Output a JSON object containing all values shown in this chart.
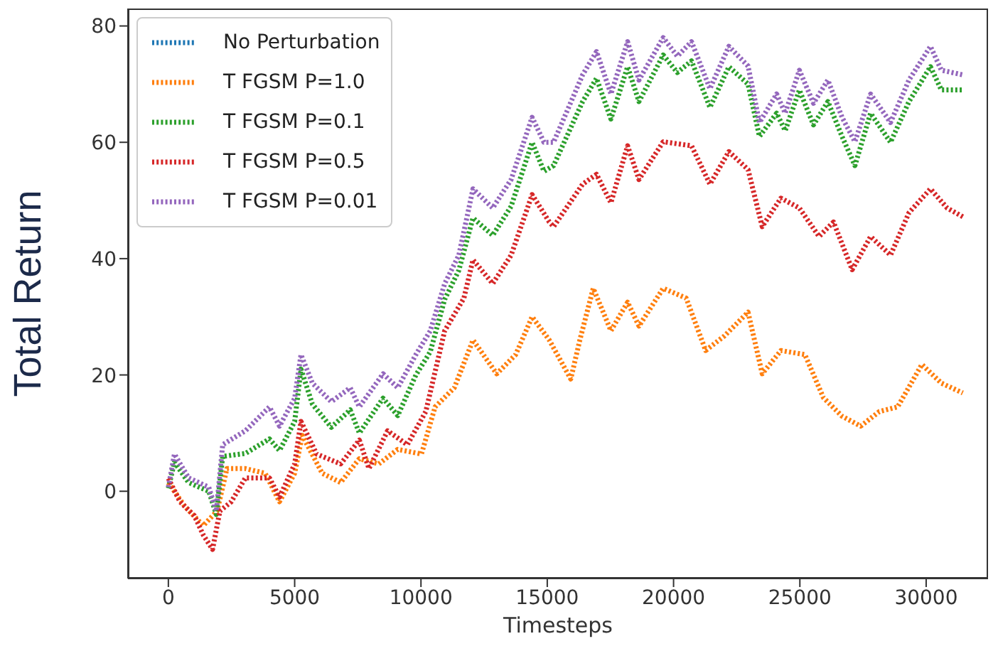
{
  "chart_data": {
    "type": "line",
    "xlabel": "Timesteps",
    "ylabel": "Total Return",
    "xlim": [
      -1600,
      32450
    ],
    "ylim": [
      -15,
      83
    ],
    "xticks": [
      0,
      5000,
      10000,
      15000,
      20000,
      25000,
      30000
    ],
    "yticks": [
      0,
      20,
      40,
      60,
      80
    ],
    "legend": "top left",
    "line_style": "dotted",
    "marker": "none",
    "grid": false,
    "series": [
      {
        "name": "No Perturbation",
        "color": "#1f77b4"
      },
      {
        "name": "T FGSM P=1.0",
        "color": "#ff7f0e",
        "x": [
          0,
          650,
          1380,
          1930,
          2320,
          3050,
          3830,
          4400,
          5000,
          5300,
          6090,
          6820,
          7560,
          8330,
          9080,
          10020,
          10560,
          11320,
          12060,
          13000,
          13750,
          14400,
          15080,
          15930,
          16290,
          16820,
          17520,
          18180,
          18630,
          19590,
          20500,
          21270,
          22010,
          22950,
          23510,
          24250,
          25200,
          25930,
          26670,
          27410,
          28140,
          28870,
          29830,
          30600,
          31450
        ],
        "values": [
          1.5,
          -2.6,
          -5.9,
          -3.4,
          3.9,
          3.9,
          3.1,
          -1.8,
          3.1,
          9.6,
          3.1,
          1.5,
          5.6,
          4.7,
          7.2,
          6.4,
          14.5,
          17.8,
          26,
          20.2,
          23.5,
          30,
          26,
          19.3,
          26,
          34.9,
          27.6,
          32.5,
          28.4,
          34.9,
          33.2,
          24.2,
          26.7,
          30.8,
          20.2,
          24.2,
          23.5,
          16.1,
          12.9,
          11.2,
          13.7,
          14.5,
          21.8,
          18.6,
          16.9
        ]
      },
      {
        "name": "T FGSM P=0.1",
        "color": "#2ca02c",
        "x": [
          0,
          240,
          800,
          1600,
          1900,
          2150,
          3050,
          4000,
          4400,
          5000,
          5250,
          5700,
          6450,
          7200,
          7560,
          8500,
          9080,
          9800,
          10370,
          10940,
          11500,
          12060,
          12840,
          13570,
          14400,
          14870,
          15250,
          16400,
          16950,
          17520,
          18180,
          18630,
          19590,
          20150,
          20710,
          21440,
          22190,
          22950,
          23400,
          24080,
          24420,
          24980,
          25540,
          26110,
          26670,
          27180,
          27800,
          28590,
          29320,
          30170,
          30600,
          31450
        ],
        "values": [
          0.5,
          5,
          1.5,
          0,
          -4,
          6,
          6.5,
          9,
          7,
          12,
          21,
          15,
          11,
          14,
          10,
          16,
          13,
          20,
          24,
          33,
          38,
          47,
          44,
          49,
          60,
          55,
          56,
          67,
          71,
          64,
          73,
          67,
          75,
          72,
          74,
          66,
          73,
          70,
          61,
          65,
          62,
          69,
          63,
          67,
          61,
          56,
          65,
          60,
          67,
          73,
          69,
          69
        ]
      },
      {
        "name": "T FGSM P=0.5",
        "color": "#d62728",
        "x": [
          0,
          460,
          1030,
          1380,
          1750,
          2040,
          2490,
          3050,
          4000,
          4400,
          5000,
          5250,
          5870,
          6820,
          7560,
          7940,
          8680,
          9460,
          10190,
          10940,
          11700,
          12060,
          12840,
          13570,
          14400,
          15080,
          15250,
          16400,
          16950,
          17520,
          18180,
          18630,
          19590,
          20710,
          21440,
          22190,
          22950,
          23510,
          24250,
          24980,
          25760,
          26330,
          27070,
          27800,
          28590,
          29320,
          30170,
          30830,
          31450
        ],
        "values": [
          2.2,
          -1.8,
          -4.2,
          -7.5,
          -10,
          -3.4,
          -1.8,
          2.3,
          2.3,
          -1,
          4.7,
          12,
          6.4,
          4.7,
          8.8,
          3.9,
          10.4,
          8,
          13.7,
          27.6,
          33.2,
          39.8,
          35.7,
          40.6,
          51,
          46.3,
          45.5,
          52.8,
          54.5,
          49.6,
          59.4,
          53.6,
          60.1,
          59.4,
          52.8,
          58.4,
          55.3,
          45.5,
          50.4,
          48.7,
          43.8,
          46.3,
          38.1,
          43.8,
          40.6,
          47.9,
          52,
          48.7,
          47.2
        ]
      },
      {
        "name": "T FGSM P=0.01",
        "color": "#9467bd",
        "x": [
          0,
          240,
          800,
          1600,
          1900,
          2150,
          3050,
          4000,
          4400,
          5000,
          5250,
          5700,
          6450,
          7200,
          7560,
          8500,
          9080,
          9800,
          10370,
          10940,
          11500,
          12060,
          12840,
          13570,
          14400,
          14870,
          15250,
          16400,
          16950,
          17520,
          18180,
          18630,
          19590,
          20150,
          20710,
          21440,
          22190,
          22950,
          23400,
          24080,
          24420,
          24980,
          25540,
          26110,
          26670,
          27180,
          27800,
          28590,
          29320,
          30170,
          30600,
          31450
        ],
        "values": [
          0.7,
          6.4,
          2.3,
          0.7,
          -3.4,
          8,
          10.4,
          14.5,
          11.2,
          16,
          23.5,
          18.6,
          15.4,
          17.8,
          14.5,
          20.2,
          17.8,
          23.5,
          27.6,
          35.7,
          40.6,
          52,
          48.7,
          53.6,
          64.3,
          60,
          60,
          71.6,
          75.6,
          68.3,
          77.3,
          70.7,
          78,
          74.8,
          77.3,
          69.2,
          76.5,
          73.1,
          63.4,
          68.3,
          65,
          72.4,
          66.7,
          70.7,
          64.3,
          60.1,
          68.3,
          63.4,
          70.7,
          76.5,
          72.4,
          71.6
        ]
      }
    ]
  }
}
